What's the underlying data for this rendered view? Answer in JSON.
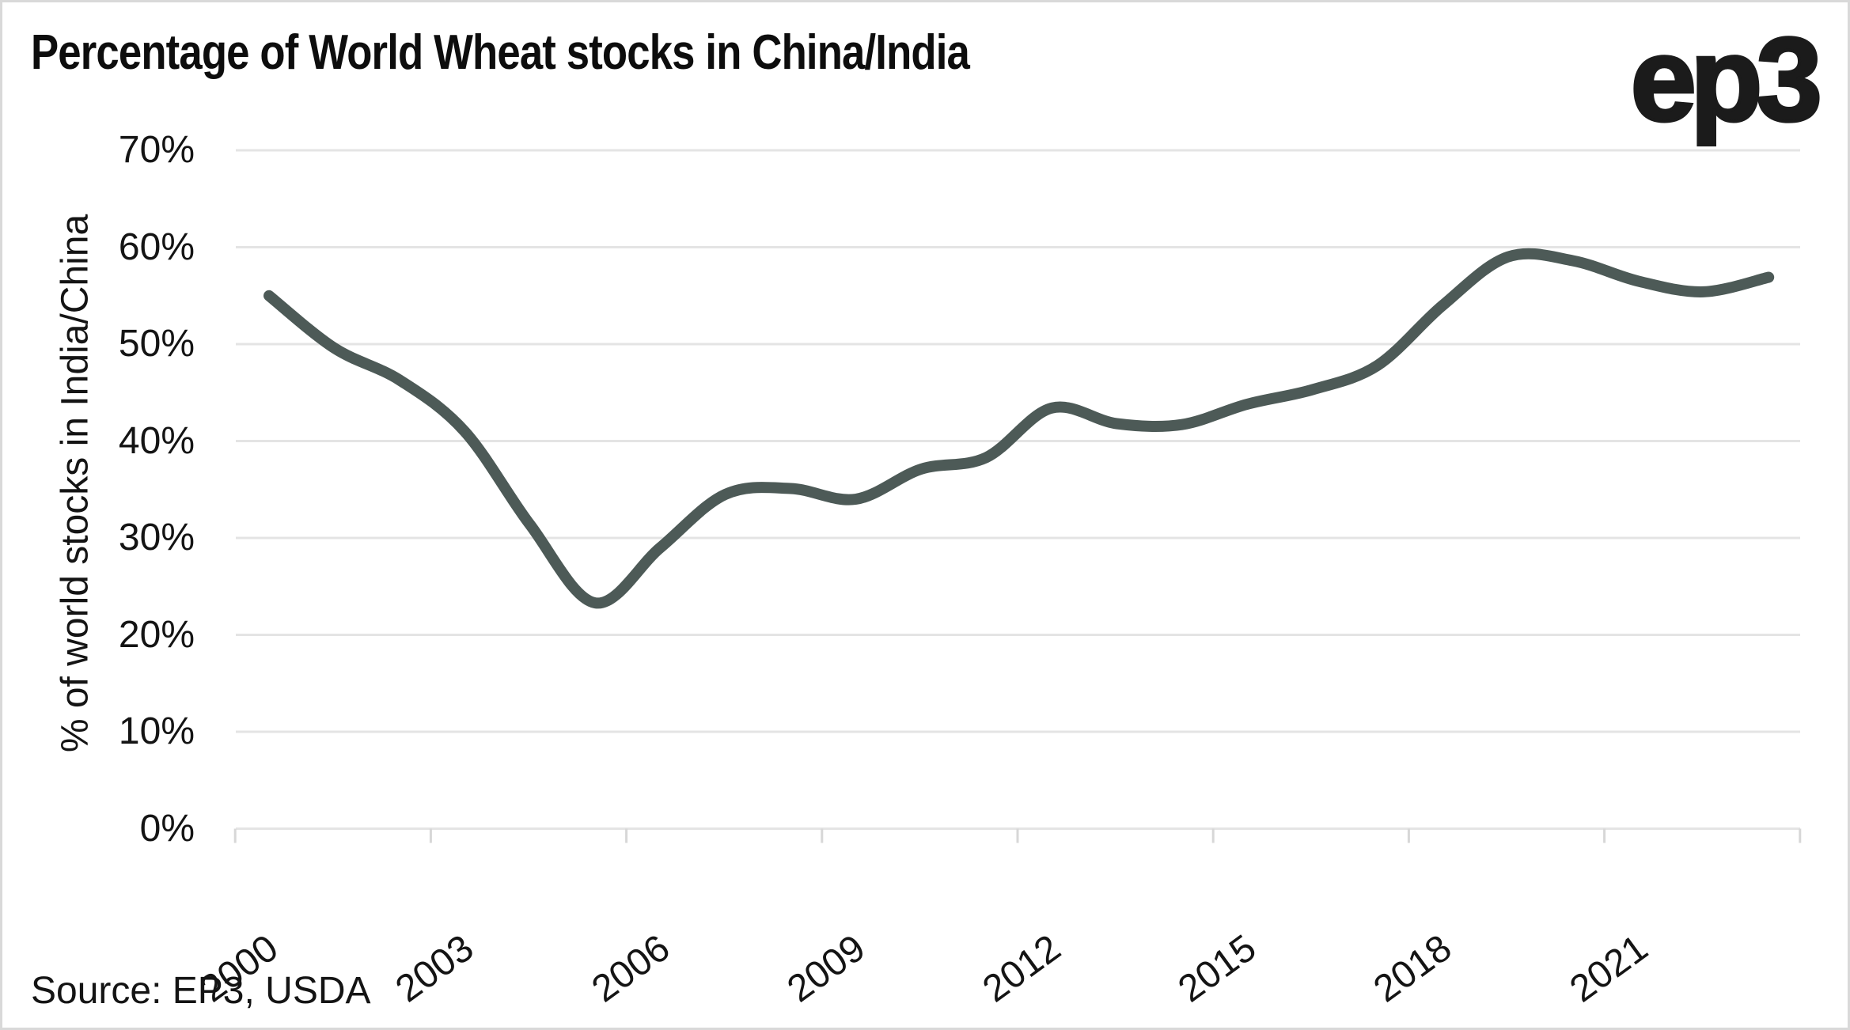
{
  "header": {
    "title": "Percentage of World Wheat stocks in China/India",
    "logo": "ep3"
  },
  "footer": {
    "source": "Source: EP3, USDA"
  },
  "chart_data": {
    "type": "line",
    "title": "Percentage of World Wheat stocks in China/India",
    "xlabel": "",
    "ylabel": "% of world stocks in India/China",
    "x": [
      2000,
      2001,
      2002,
      2003,
      2004,
      2005,
      2006,
      2007,
      2008,
      2009,
      2010,
      2011,
      2012,
      2013,
      2014,
      2015,
      2016,
      2017,
      2018,
      2019,
      2020,
      2021,
      2022,
      2023
    ],
    "values": [
      55.0,
      49.6,
      46.3,
      41.0,
      31.4,
      23.3,
      29.0,
      34.5,
      35.1,
      34.0,
      37.1,
      38.3,
      43.4,
      41.8,
      41.7,
      43.8,
      45.3,
      47.8,
      54.0,
      59.0,
      58.6,
      56.5,
      55.4,
      56.9
    ],
    "x_tick_labels": [
      "2000",
      "2003",
      "2006",
      "2009",
      "2012",
      "2015",
      "2018",
      "2021"
    ],
    "y_tick_labels": [
      "0%",
      "10%",
      "20%",
      "30%",
      "40%",
      "50%",
      "60%",
      "70%"
    ],
    "ylim": [
      0,
      70
    ],
    "grid": true,
    "legend": false,
    "smoothing": "spline",
    "line_color": "#4d5a57",
    "grid_color": "#e4e4e4",
    "tick_color": "#d7d7d7"
  }
}
